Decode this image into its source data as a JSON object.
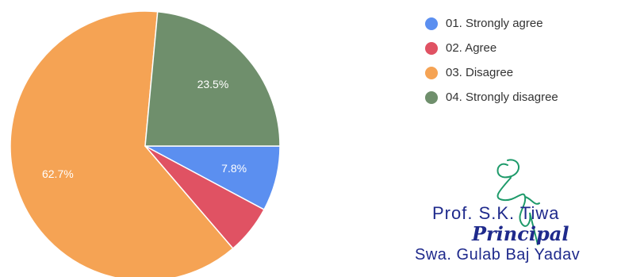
{
  "chart_data": {
    "type": "pie",
    "title": "",
    "categories": [
      "01. Strongly agree",
      "02. Agree",
      "03. Disagree",
      "04. Strongly disagree"
    ],
    "values": [
      7.8,
      5.9,
      62.7,
      23.5
    ],
    "labels": [
      "7.8%",
      "",
      "62.7%",
      "23.5%"
    ],
    "colors": [
      "#5b8ff0",
      "#e05263",
      "#f5a354",
      "#6f8f6c"
    ],
    "legend": "top-right"
  },
  "stamp": {
    "name": "Prof. S.K. Tiwa",
    "title": "Principal",
    "org": "Swa. Gulab Baj Yadav"
  }
}
